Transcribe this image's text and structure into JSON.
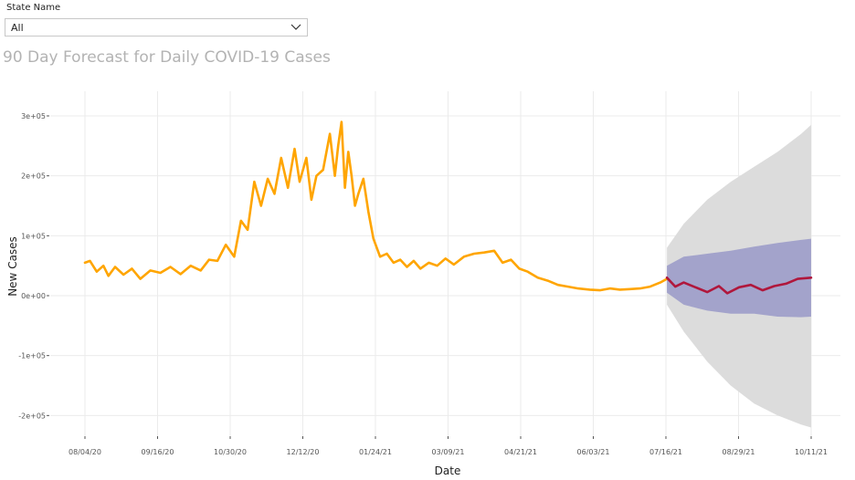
{
  "filter": {
    "label": "State Name",
    "value": "All"
  },
  "chart_data": {
    "type": "line",
    "title": "90 Day Forecast for Daily COVID-19 Cases",
    "xlabel": "Date",
    "ylabel": "New Cases",
    "x_ticks": [
      "08/04/20",
      "09/16/20",
      "10/30/20",
      "12/12/20",
      "01/24/21",
      "03/09/21",
      "04/21/21",
      "06/03/21",
      "07/16/21",
      "08/29/21",
      "10/11/21"
    ],
    "y_ticks": [
      "3e+05",
      "2e+05",
      "1e+05",
      "0e+00",
      "-1e+05",
      "-2e+05"
    ],
    "y_tick_values": [
      300000,
      200000,
      100000,
      0,
      -100000,
      -200000
    ],
    "xlim": [
      "2020-08-04",
      "2021-10-11"
    ],
    "ylim": [
      -230000,
      340000
    ],
    "grid": true,
    "legend": "none",
    "colors": {
      "history": "#FFA500",
      "forecast": "#B0173C",
      "inner_band": "#9999C8",
      "outer_band": "#DCDCDC",
      "grid": "#EBEBEB"
    },
    "series": [
      {
        "type": "line",
        "dates": [
          "2020-08-04",
          "2020-08-07",
          "2020-08-11",
          "2020-08-15",
          "2020-08-18",
          "2020-08-22",
          "2020-08-27",
          "2020-09-01",
          "2020-09-06",
          "2020-09-12",
          "2020-09-18",
          "2020-09-24",
          "2020-09-30",
          "2020-10-06",
          "2020-10-12",
          "2020-10-17",
          "2020-10-22",
          "2020-10-27",
          "2020-11-01",
          "2020-11-05",
          "2020-11-09",
          "2020-11-13",
          "2020-11-17",
          "2020-11-21",
          "2020-11-25",
          "2020-11-29",
          "2020-12-03",
          "2020-12-07",
          "2020-12-10",
          "2020-12-14",
          "2020-12-17",
          "2020-12-20",
          "2020-12-24",
          "2020-12-28",
          "2020-12-31",
          "2021-01-02",
          "2021-01-04",
          "2021-01-06",
          "2021-01-08",
          "2021-01-10",
          "2021-01-12",
          "2021-01-14",
          "2021-01-17",
          "2021-01-20",
          "2021-01-23",
          "2021-01-27",
          "2021-01-31",
          "2021-02-04",
          "2021-02-08",
          "2021-02-12",
          "2021-02-16",
          "2021-02-20",
          "2021-02-25",
          "2021-03-02",
          "2021-03-07",
          "2021-03-12",
          "2021-03-18",
          "2021-03-24",
          "2021-03-30",
          "2021-04-05",
          "2021-04-10",
          "2021-04-15",
          "2021-04-20",
          "2021-04-25",
          "2021-05-01",
          "2021-05-07",
          "2021-05-13",
          "2021-05-19",
          "2021-05-25",
          "2021-06-01",
          "2021-06-07",
          "2021-06-13",
          "2021-06-19",
          "2021-06-25",
          "2021-07-01",
          "2021-07-07",
          "2021-07-13",
          "2021-07-17"
        ],
        "values": [
          55000,
          58000,
          40000,
          50000,
          33000,
          48000,
          35000,
          45000,
          28000,
          42000,
          38000,
          48000,
          36000,
          50000,
          42000,
          60000,
          58000,
          85000,
          65000,
          125000,
          110000,
          190000,
          150000,
          195000,
          170000,
          230000,
          180000,
          245000,
          190000,
          230000,
          160000,
          200000,
          210000,
          270000,
          200000,
          250000,
          290000,
          180000,
          240000,
          200000,
          150000,
          170000,
          195000,
          140000,
          95000,
          65000,
          70000,
          55000,
          60000,
          48000,
          58000,
          45000,
          55000,
          50000,
          62000,
          52000,
          65000,
          70000,
          72000,
          75000,
          55000,
          60000,
          45000,
          40000,
          30000,
          25000,
          18000,
          15000,
          12000,
          10000,
          9000,
          12000,
          10000,
          11000,
          12000,
          15000,
          22000,
          28000
        ]
      },
      {
        "type": "line",
        "dates": [
          "2021-07-17",
          "2021-07-22",
          "2021-07-27",
          "2021-08-03",
          "2021-08-10",
          "2021-08-17",
          "2021-08-22",
          "2021-08-29",
          "2021-09-05",
          "2021-09-12",
          "2021-09-19",
          "2021-09-26",
          "2021-10-03",
          "2021-10-11"
        ],
        "values": [
          30000,
          15000,
          22000,
          14000,
          6000,
          16000,
          4000,
          14000,
          18000,
          9000,
          16000,
          20000,
          28000,
          30000
        ]
      },
      {
        "type": "band",
        "dates": [
          "2021-07-17",
          "2021-07-27",
          "2021-08-10",
          "2021-08-24",
          "2021-09-07",
          "2021-09-21",
          "2021-10-05",
          "2021-10-11"
        ],
        "lower": [
          5000,
          -15000,
          -25000,
          -30000,
          -30000,
          -35000,
          -36000,
          -35000
        ],
        "upper": [
          50000,
          65000,
          70000,
          75000,
          82000,
          88000,
          93000,
          95000
        ]
      },
      {
        "type": "band",
        "dates": [
          "2021-07-17",
          "2021-07-27",
          "2021-08-10",
          "2021-08-24",
          "2021-09-07",
          "2021-09-21",
          "2021-10-05",
          "2021-10-11"
        ],
        "lower": [
          -15000,
          -60000,
          -110000,
          -150000,
          -180000,
          -200000,
          -215000,
          -220000
        ],
        "upper": [
          80000,
          120000,
          160000,
          190000,
          215000,
          240000,
          270000,
          285000
        ]
      }
    ]
  }
}
